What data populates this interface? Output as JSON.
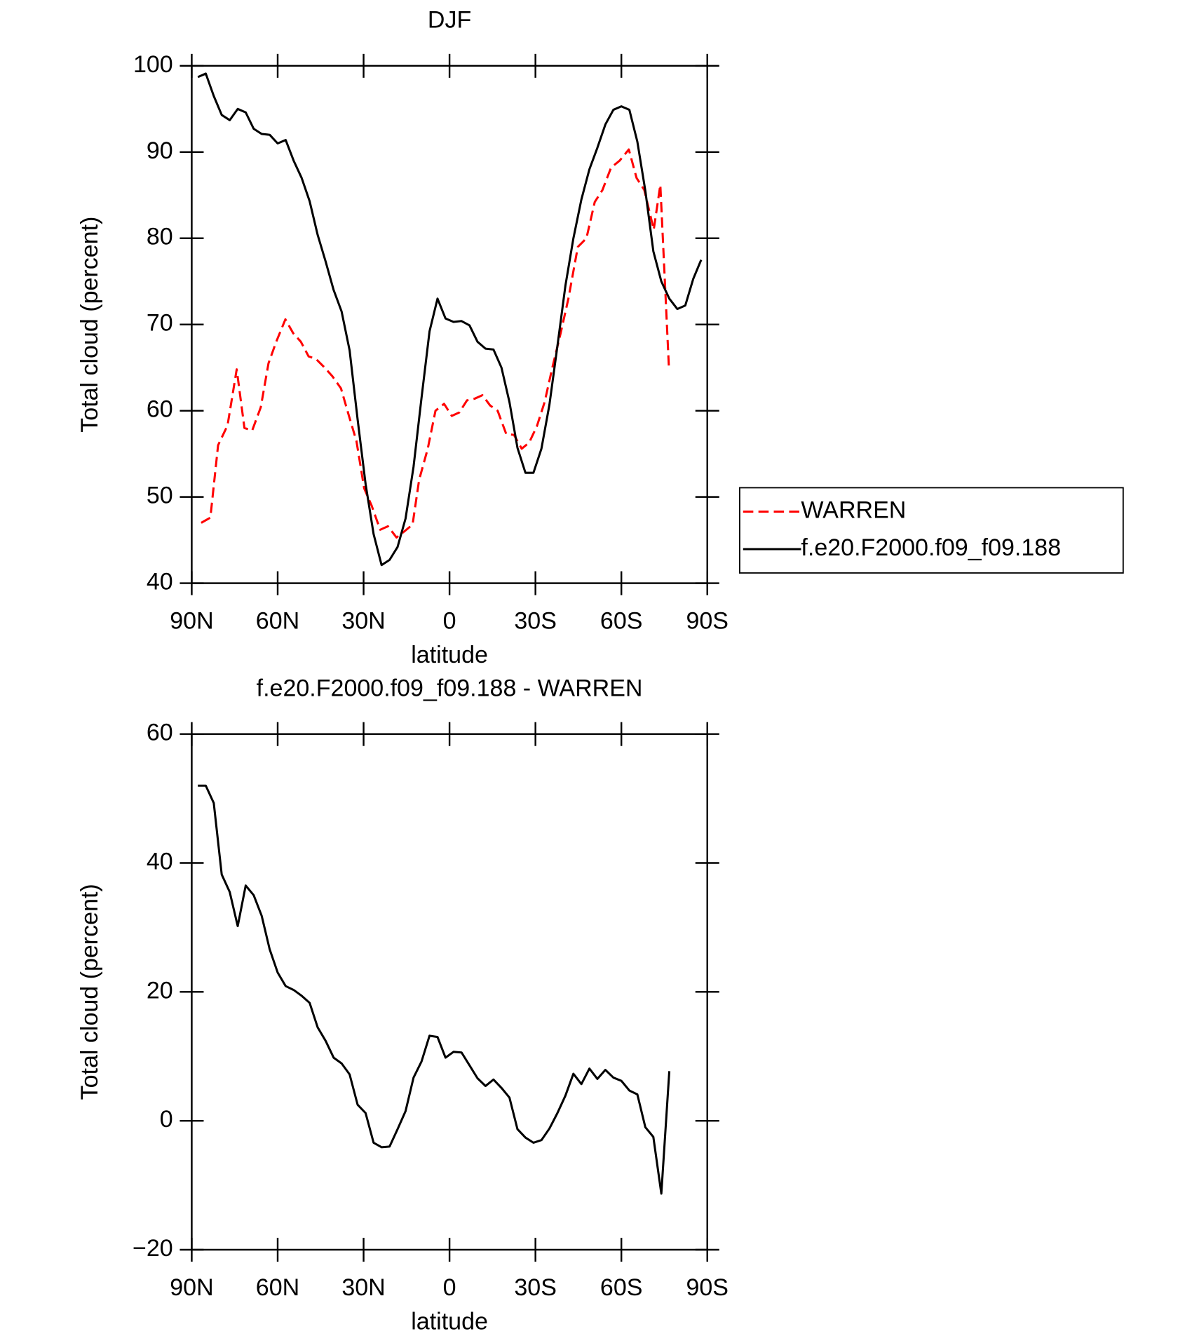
{
  "chart_data": [
    {
      "type": "line",
      "title": "DJF",
      "xlabel": "latitude",
      "ylabel": "Total cloud (percent)",
      "xlim": [
        90,
        -90
      ],
      "xticks": [
        {
          "value": 90,
          "label": "90N"
        },
        {
          "value": 60,
          "label": "60N"
        },
        {
          "value": 30,
          "label": "30N"
        },
        0,
        {
          "value": -30,
          "label": "30S"
        },
        {
          "value": -60,
          "label": "60S"
        },
        {
          "value": -90,
          "label": "90S"
        }
      ],
      "ylim": [
        40,
        100
      ],
      "yticks": [
        40,
        50,
        60,
        70,
        80,
        90,
        100
      ],
      "legend": "right",
      "series": [
        {
          "name": "WARREN",
          "color": "#ff0000",
          "linestyle": "dashed",
          "x": [
            86.7,
            83.5,
            80.8,
            77.5,
            74.3,
            71.6,
            68.9,
            65.9,
            63.2,
            60.5,
            57.3,
            54.6,
            51.9,
            49.2,
            46.6,
            43.6,
            40.9,
            37.9,
            35.2,
            32.5,
            29.8,
            27.2,
            24.2,
            21.5,
            18.5,
            15.8,
            12.9,
            10.6,
            7.6,
            4.9,
            1.9,
            -0.8,
            -3.4,
            -6.1,
            -8.8,
            -11.5,
            -14.2,
            -16.8,
            -19.8,
            -22.5,
            -25.2,
            -27.8,
            -30.5,
            -33.2,
            -35.9,
            -38.8,
            -41.5,
            -44.8,
            -47.8,
            -50.7,
            -53.4,
            -56.4,
            -59.4,
            -62.6,
            -65.3,
            -68,
            -71.3,
            -73.6,
            -76.6
          ],
          "values": [
            47,
            47.6,
            56,
            58.3,
            64.8,
            58,
            57.7,
            60.4,
            65.5,
            68,
            70.6,
            69,
            68,
            66.3,
            66,
            65,
            64,
            62.6,
            59.5,
            56.5,
            51,
            49,
            46.2,
            46.6,
            45.3,
            46,
            46.8,
            52,
            55.6,
            60,
            60.8,
            59.4,
            59.8,
            61.2,
            61.4,
            61.8,
            60.6,
            60,
            57.3,
            57.2,
            55.6,
            56.3,
            58.2,
            61,
            65,
            69,
            73,
            79,
            80,
            84.2,
            85.6,
            88.2,
            89,
            90.3,
            87,
            85.6,
            81,
            86.2,
            65
          ]
        },
        {
          "name": "f.e20.F2000.f09_f09.188",
          "color": "#000000",
          "linestyle": "solid",
          "x": [
            87.86,
            85.1,
            82.31,
            79.53,
            76.74,
            73.95,
            71.16,
            68.37,
            65.58,
            62.79,
            60,
            57.21,
            54.42,
            51.63,
            48.84,
            46.04,
            43.25,
            40.46,
            37.67,
            34.88,
            32.09,
            29.3,
            26.51,
            23.72,
            20.93,
            18.14,
            15.35,
            12.56,
            9.77,
            6.98,
            4.19,
            1.4,
            -1.4,
            -4.19,
            -6.98,
            -9.77,
            -12.56,
            -15.35,
            -18.14,
            -20.93,
            -23.72,
            -26.51,
            -29.3,
            -32.09,
            -34.88,
            -37.67,
            -40.46,
            -43.25,
            -46.04,
            -48.84,
            -51.63,
            -54.42,
            -57.21,
            -60,
            -62.79,
            -65.58,
            -68.37,
            -71.16,
            -73.95,
            -76.74,
            -79.53,
            -82.31,
            -85.1,
            -87.86
          ],
          "values": [
            98.7,
            99.1,
            96.5,
            94.3,
            93.7,
            95,
            94.6,
            92.7,
            92.1,
            92,
            91,
            91.4,
            89,
            87,
            84.3,
            80.4,
            77.3,
            74,
            71.5,
            67,
            59,
            51.5,
            45.7,
            42.1,
            42.7,
            44.2,
            47.5,
            53.5,
            61.5,
            69.2,
            73,
            70.7,
            70.3,
            70.4,
            69.9,
            68,
            67.2,
            67.1,
            65,
            61,
            55.7,
            52.8,
            52.8,
            55.6,
            60.7,
            67.5,
            74.5,
            80,
            84.5,
            88,
            90.5,
            93.2,
            94.9,
            95.3,
            94.9,
            91.2,
            85.5,
            78.5,
            75,
            73,
            71.8,
            72.2,
            75.3,
            77.5
          ]
        }
      ]
    },
    {
      "type": "line",
      "title": "f.e20.F2000.f09_f09.188 - WARREN",
      "xlabel": "latitude",
      "ylabel": "Total cloud (percent)",
      "xlim": [
        90,
        -90
      ],
      "xticks": [
        {
          "value": 90,
          "label": "90N"
        },
        {
          "value": 60,
          "label": "60N"
        },
        {
          "value": 30,
          "label": "30N"
        },
        0,
        {
          "value": -30,
          "label": "30S"
        },
        {
          "value": -60,
          "label": "60S"
        },
        {
          "value": -90,
          "label": "90S"
        }
      ],
      "ylim": [
        -20,
        60
      ],
      "yticks": [
        {
          "value": -20,
          "label": "−20"
        },
        0,
        20,
        40,
        60
      ],
      "series": [
        {
          "color": "#000000",
          "linestyle": "solid",
          "x": [
            87.86,
            85.1,
            82.31,
            79.53,
            76.74,
            73.95,
            71.16,
            68.37,
            65.58,
            62.79,
            60,
            57.21,
            54.42,
            51.63,
            48.84,
            46.04,
            43.25,
            40.46,
            37.67,
            34.88,
            32.09,
            29.3,
            26.51,
            23.72,
            20.93,
            18.14,
            15.35,
            12.56,
            9.77,
            6.98,
            4.19,
            1.4,
            -1.4,
            -4.19,
            -6.98,
            -9.77,
            -12.56,
            -15.35,
            -18.14,
            -20.93,
            -23.72,
            -26.51,
            -29.3,
            -32.09,
            -34.88,
            -37.67,
            -40.46,
            -43.25,
            -46.04,
            -48.84,
            -51.63,
            -54.42,
            -57.21,
            -60,
            -62.79,
            -65.58,
            -68.37,
            -71.16,
            -73.95,
            -76.74
          ],
          "values": [
            52,
            52,
            49.3,
            38.2,
            35.5,
            30.2,
            36.5,
            35,
            31.8,
            26.6,
            23,
            20.9,
            20.3,
            19.4,
            18.3,
            14.5,
            12.4,
            9.8,
            8.9,
            7.2,
            2.5,
            1.2,
            -3.4,
            -4.1,
            -4,
            -1.3,
            1.5,
            6.7,
            9.2,
            13.2,
            13,
            9.8,
            10.7,
            10.6,
            8.6,
            6.6,
            5.4,
            6.4,
            5.1,
            3.6,
            -1.3,
            -2.6,
            -3.4,
            -3,
            -1.2,
            1.2,
            3.9,
            7.3,
            5.7,
            8.1,
            6.5,
            7.9,
            6.7,
            6.2,
            4.7,
            4.1,
            -1,
            -2.5,
            -11.3,
            7.7
          ]
        }
      ]
    }
  ]
}
